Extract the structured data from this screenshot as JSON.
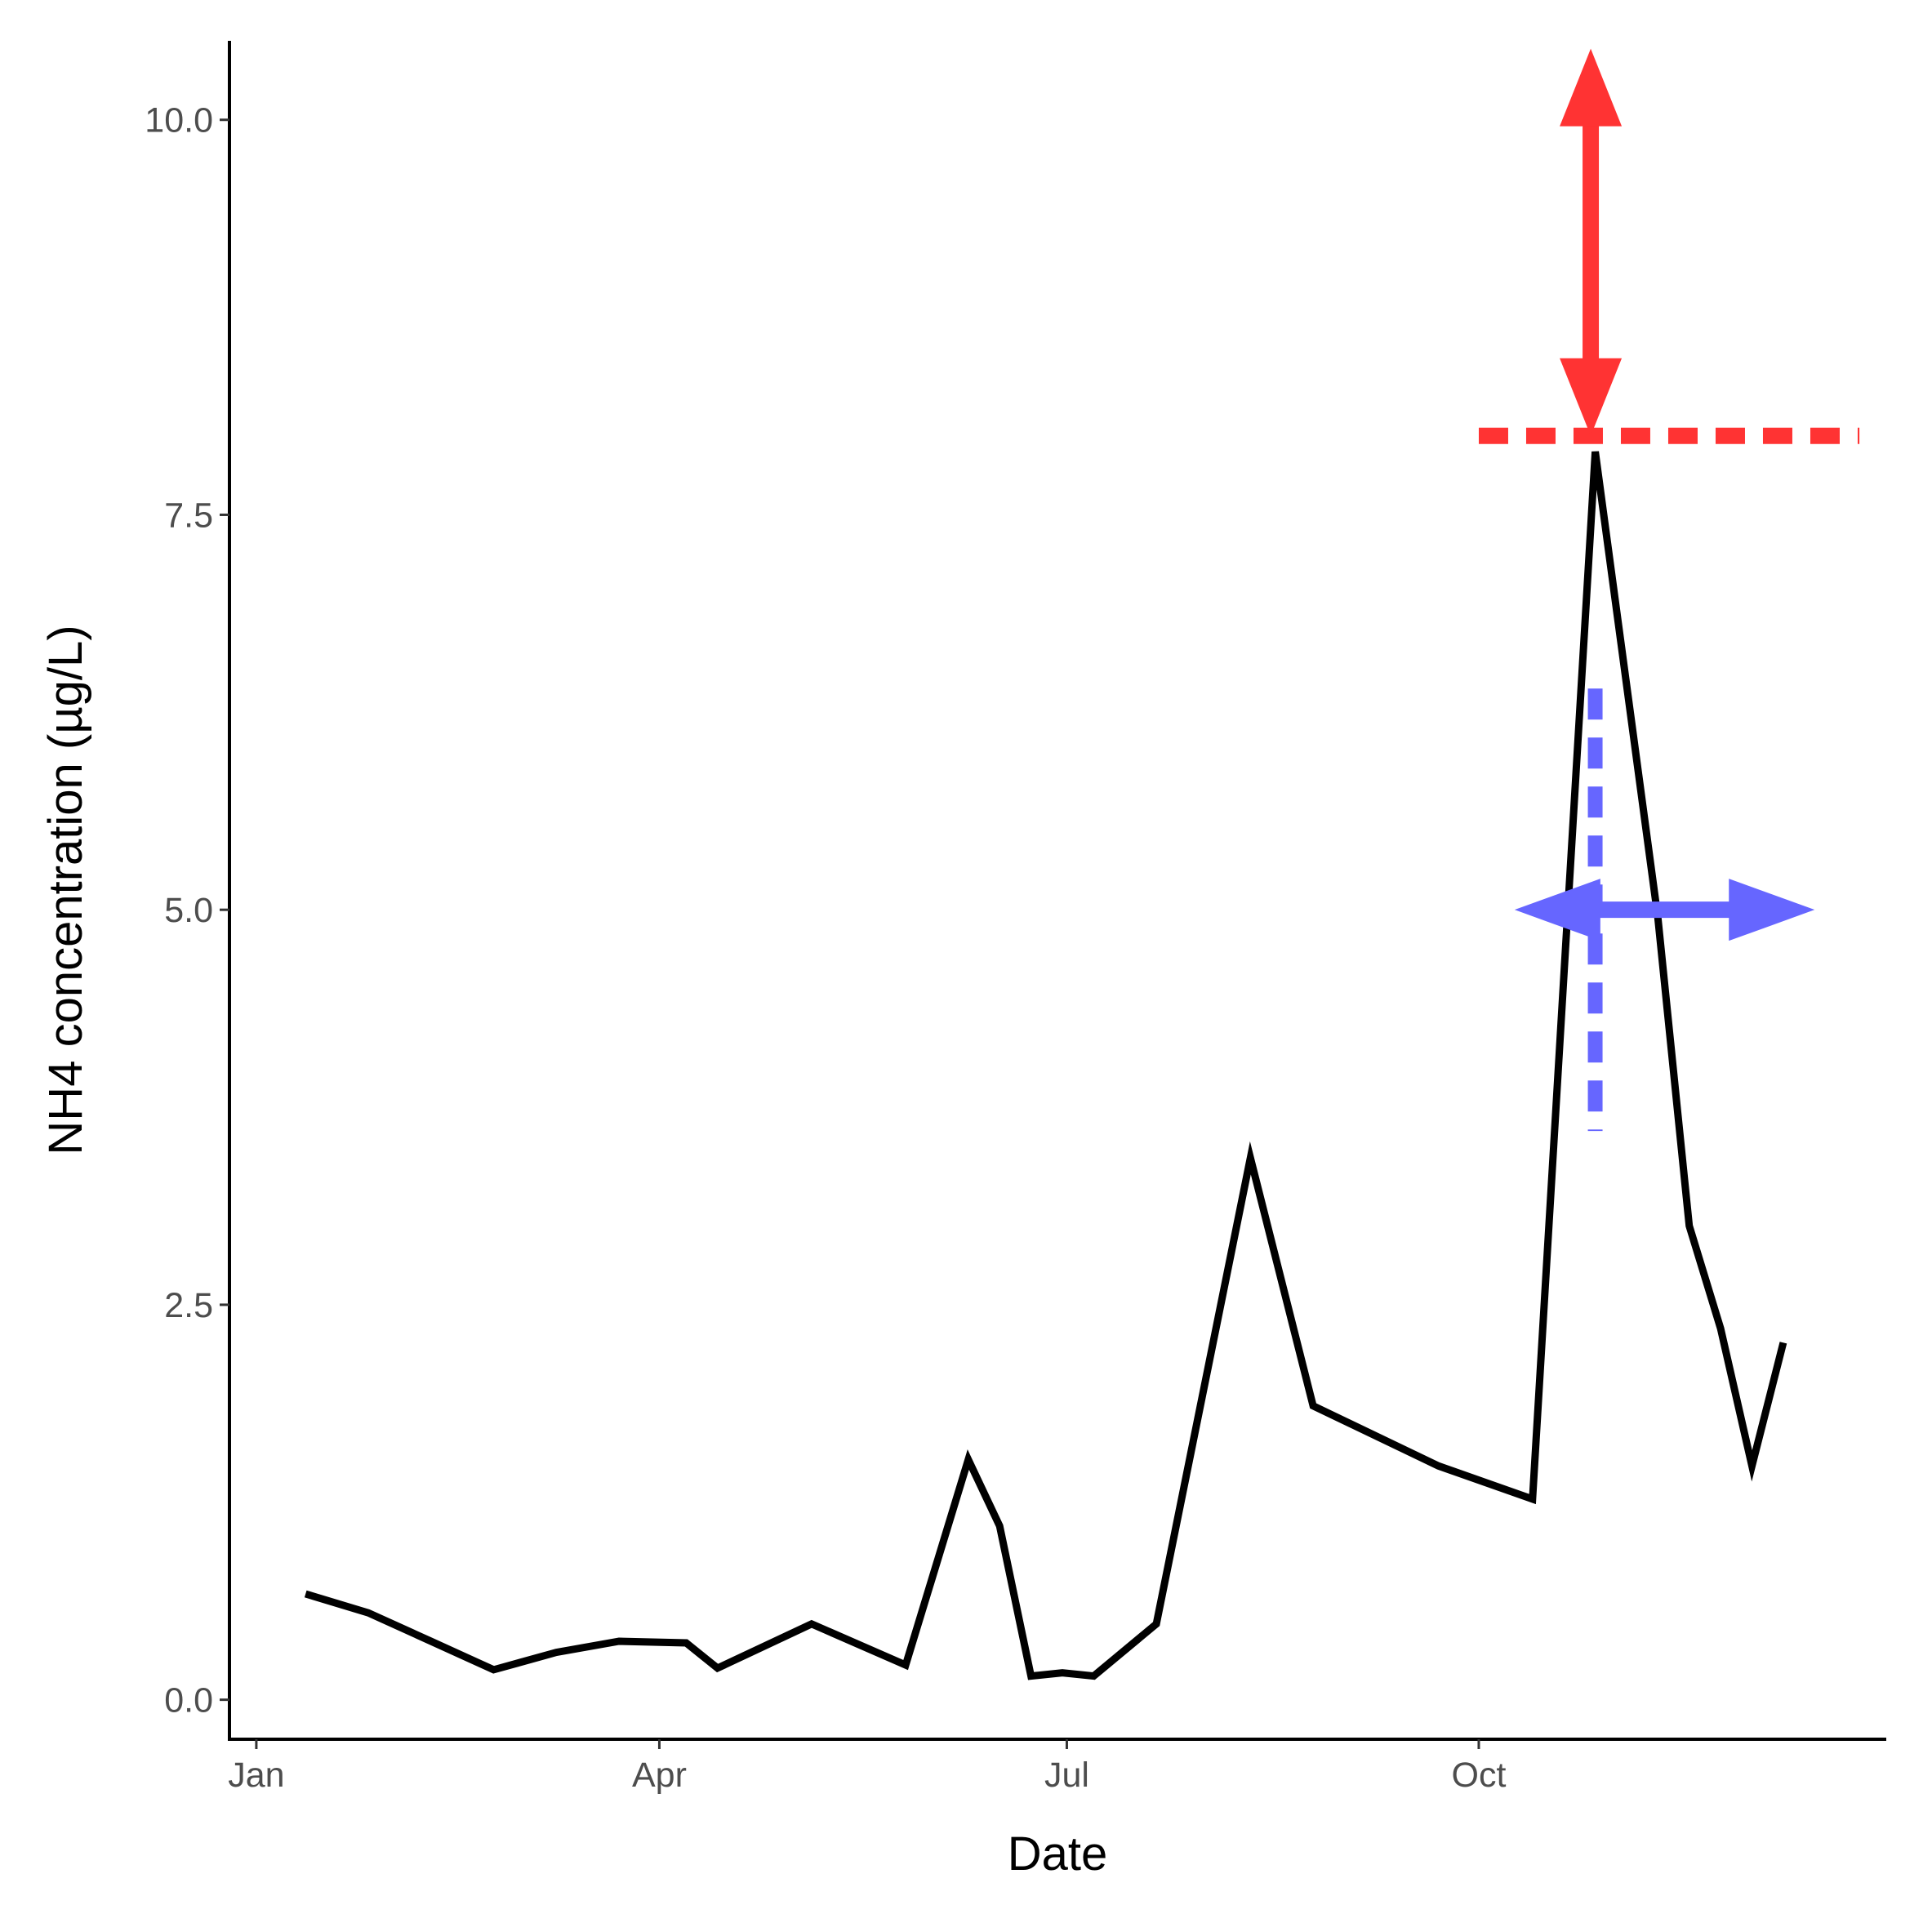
{
  "chart_data": {
    "type": "line",
    "title": "",
    "xlabel": "Date",
    "ylabel": "NH4 concentration (µg/L)",
    "ylim": [
      -0.25,
      10.5
    ],
    "xlim": [
      "2017-12-26",
      "2018-12-31"
    ],
    "grid": false,
    "x_ticks": [
      {
        "date": "2018-01-01",
        "label": "Jan"
      },
      {
        "date": "2018-04-01",
        "label": "Apr"
      },
      {
        "date": "2018-07-01",
        "label": "Jul"
      },
      {
        "date": "2018-10-01",
        "label": "Oct"
      }
    ],
    "y_ticks": [
      {
        "value": 0.0,
        "label": "0.0"
      },
      {
        "value": 2.5,
        "label": "2.5"
      },
      {
        "value": 5.0,
        "label": "5.0"
      },
      {
        "value": 7.5,
        "label": "7.5"
      },
      {
        "value": 10.0,
        "label": "10.0"
      }
    ],
    "series": [
      {
        "color": "#000000",
        "points": [
          [
            "2018-01-12",
            0.67
          ],
          [
            "2018-01-26",
            0.55
          ],
          [
            "2018-02-09",
            0.37
          ],
          [
            "2018-02-23",
            0.19
          ],
          [
            "2018-03-09",
            0.3
          ],
          [
            "2018-03-23",
            0.37
          ],
          [
            "2018-04-07",
            0.36
          ],
          [
            "2018-04-14",
            0.2
          ],
          [
            "2018-05-05",
            0.48
          ],
          [
            "2018-05-26",
            0.22
          ],
          [
            "2018-06-09",
            1.52
          ],
          [
            "2018-06-16",
            1.1
          ],
          [
            "2018-06-23",
            0.15
          ],
          [
            "2018-06-30",
            0.17
          ],
          [
            "2018-07-07",
            0.15
          ],
          [
            "2018-07-21",
            0.48
          ],
          [
            "2018-08-11",
            3.43
          ],
          [
            "2018-08-25",
            1.86
          ],
          [
            "2018-09-22",
            1.48
          ],
          [
            "2018-10-13",
            1.27
          ],
          [
            "2018-10-27",
            7.9
          ],
          [
            "2018-11-10",
            4.95
          ],
          [
            "2018-11-17",
            3.0
          ],
          [
            "2018-11-24",
            2.35
          ],
          [
            "2018-12-01",
            1.48
          ],
          [
            "2018-12-08",
            2.26
          ]
        ]
      }
    ],
    "annotations": [
      {
        "kind": "dashed-hline",
        "color": "#ff3333",
        "y": 8.0,
        "x_from": "2018-10-01",
        "x_to": "2018-12-25"
      },
      {
        "kind": "vertical-double-arrow",
        "color": "#ff3333",
        "x": "2018-10-26",
        "y_from": 8.0,
        "y_to": 10.45
      },
      {
        "kind": "dashed-vline",
        "color": "#6666ff",
        "x": "2018-10-27",
        "y_from": 3.6,
        "y_to": 6.4
      },
      {
        "kind": "horizontal-double-arrow",
        "color": "#6666ff",
        "y": 5.0,
        "x_from": "2018-10-09",
        "x_to": "2018-12-15"
      }
    ]
  }
}
